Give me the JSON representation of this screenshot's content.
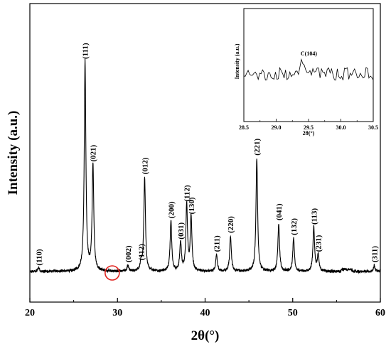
{
  "chart_data": [
    {
      "type": "line",
      "title": "",
      "xlabel": "2θ(°)",
      "ylabel": "Intensity (a.u.)",
      "xlim": [
        20,
        60
      ],
      "ylim": [
        0,
        100
      ],
      "x_ticks": [
        "20",
        "30",
        "40",
        "50",
        "60"
      ],
      "y_ticks_shown": false,
      "grid": false,
      "legend": "none",
      "line_color": "#000000",
      "peaks": [
        {
          "label": "(110)",
          "x": 21.0,
          "height": 1.5
        },
        {
          "label": "(111)",
          "x": 26.3,
          "height": 100
        },
        {
          "label": "(021)",
          "x": 27.2,
          "height": 51
        },
        {
          "label": "(002)",
          "x": 31.2,
          "height": 3
        },
        {
          "label": "(112)",
          "x": 32.7,
          "height": 4
        },
        {
          "label": "(012)",
          "x": 33.1,
          "height": 45
        },
        {
          "label": "(200)",
          "x": 36.1,
          "height": 24
        },
        {
          "label": "(031)",
          "x": 37.2,
          "height": 14
        },
        {
          "label": "(112)",
          "x": 37.9,
          "height": 32
        },
        {
          "label": "(130)",
          "x": 38.4,
          "height": 26
        },
        {
          "label": "(211)",
          "x": 41.3,
          "height": 8
        },
        {
          "label": "(220)",
          "x": 42.9,
          "height": 17
        },
        {
          "label": "(221)",
          "x": 45.9,
          "height": 54
        },
        {
          "label": "(041)",
          "x": 48.4,
          "height": 23
        },
        {
          "label": "(132)",
          "x": 50.1,
          "height": 16
        },
        {
          "label": "(113)",
          "x": 52.4,
          "height": 21
        },
        {
          "label": "(231)",
          "x": 52.9,
          "height": 8
        },
        {
          "label": "(311)",
          "x": 59.3,
          "height": 3
        }
      ],
      "annotations": [
        {
          "type": "circle",
          "x": 29.4,
          "color": "#e0211d"
        }
      ]
    },
    {
      "type": "line",
      "role": "inset",
      "title": "",
      "xlabel": "2θ(°)",
      "ylabel": "Intensity (a.u.)",
      "xlim": [
        28.5,
        30.5
      ],
      "x_ticks": [
        "28.5",
        "29.0",
        "29.5",
        "30.0",
        "30.5"
      ],
      "y_ticks_shown": false,
      "line_color": "#000000",
      "peaks": [
        {
          "label": "C(104)",
          "x": 29.4
        }
      ]
    }
  ]
}
